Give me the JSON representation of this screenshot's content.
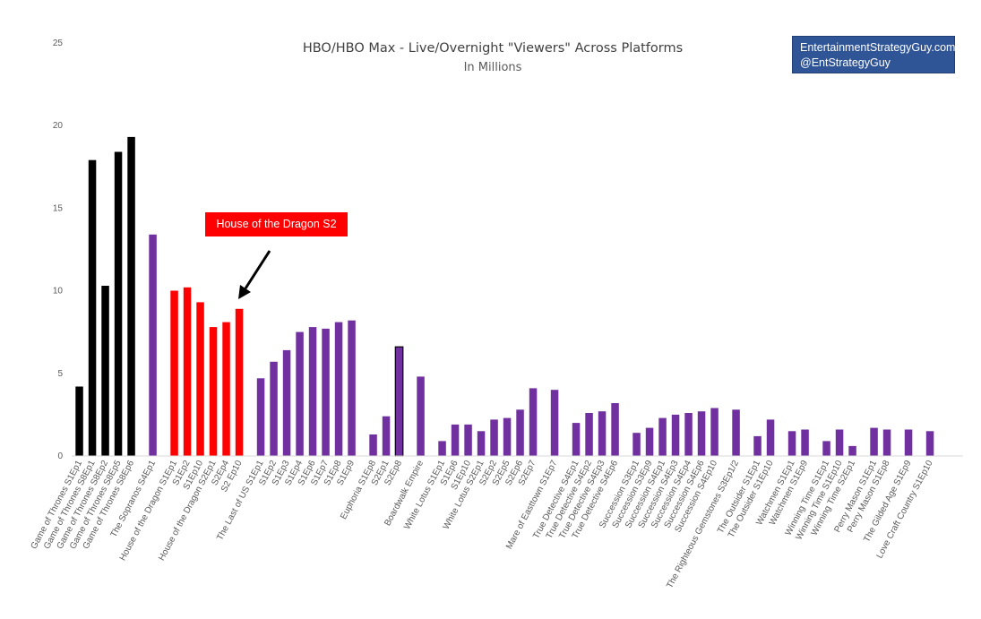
{
  "chart_data": {
    "type": "bar",
    "title": "HBO/HBO Max - Live/Overnight \"Viewers\" Across Platforms",
    "subtitle": "In Millions",
    "ylim": [
      0,
      25
    ],
    "yticks": [
      0,
      5,
      10,
      15,
      20,
      25
    ],
    "grid": false,
    "categories": [
      "Game of Thrones S1Ep1",
      "Game of Thrones S8Ep1",
      "Game of Thrones S8Ep2",
      "Game of Thrones S8Ep5",
      "Game of Thrones S8Ep6",
      "The Sopranos S4Ep1",
      "House of the Dragon S1Ep1",
      "S1Ep2",
      "S1Ep10",
      "House of the Dragon S2Ep1",
      "S2Ep4",
      "S2 Ep10",
      "The Last of US S1Ep1",
      "S1Ep2",
      "S1Ep3",
      "S1Ep4",
      "S1Ep6",
      "S1Ep7",
      "S1Ep8",
      "S1Ep9",
      "Euphoria S1Ep8",
      "S2Ep1",
      "S2Ep8",
      "Boardwalk Empire",
      "White Lotus S1Ep1",
      "S1Ep6",
      "S1Ep10",
      "White Lotus S2Ep1",
      "S2Ep2",
      "S2Ep5",
      "S2Ep6",
      "S2Ep7",
      "Mare of Easttown S1Ep7",
      "True Detective S4Ep1",
      "True Detective S4Ep2",
      "True Detective S4Ep3",
      "True Detective S4Ep6",
      "Succession S3Ep1",
      "Succession S3Ep9",
      "Succession S4Ep1",
      "Succession S4Ep3",
      "Succession S4Ep4",
      "Succession S4Ep6",
      "Succession S4Ep10",
      "The Righteous Gemstones S3Ep1/2",
      "The Outsider S1Ep1",
      "The Outsider S1Ep10",
      "Watchmen S1Ep1",
      "Watchmen S1Ep9",
      "Winning Time S1Ep1",
      "Winning Time S1Ep10",
      "Winning Time S2Ep1",
      "Perry Mason S1Ep1",
      "Perry Mason S1Ep8",
      "The Gilded Age S1Ep9",
      "Love Craft Country S1Ep10"
    ],
    "values": [
      4.2,
      17.9,
      10.3,
      18.4,
      19.3,
      13.4,
      10.0,
      10.2,
      9.3,
      7.8,
      8.1,
      8.9,
      4.7,
      5.7,
      6.4,
      7.5,
      7.8,
      7.7,
      8.1,
      8.2,
      1.3,
      2.4,
      6.6,
      4.8,
      0.9,
      1.9,
      1.9,
      1.5,
      2.2,
      2.3,
      2.8,
      4.1,
      4.0,
      2.0,
      2.6,
      2.7,
      3.2,
      1.4,
      1.7,
      2.3,
      2.5,
      2.6,
      2.7,
      2.9,
      2.8,
      1.2,
      2.2,
      1.5,
      1.6,
      0.9,
      1.6,
      0.6,
      1.7,
      1.6,
      1.6,
      1.5
    ],
    "colors": [
      "#000000",
      "#000000",
      "#000000",
      "#000000",
      "#000000",
      "#7030a0",
      "#ff0000",
      "#ff0000",
      "#ff0000",
      "#ff0000",
      "#ff0000",
      "#ff0000",
      "#7030a0",
      "#7030a0",
      "#7030a0",
      "#7030a0",
      "#7030a0",
      "#7030a0",
      "#7030a0",
      "#7030a0",
      "#7030a0",
      "#7030a0",
      "#7030a0",
      "#7030a0",
      "#7030a0",
      "#7030a0",
      "#7030a0",
      "#7030a0",
      "#7030a0",
      "#7030a0",
      "#7030a0",
      "#7030a0",
      "#7030a0",
      "#7030a0",
      "#7030a0",
      "#7030a0",
      "#7030a0",
      "#7030a0",
      "#7030a0",
      "#7030a0",
      "#7030a0",
      "#7030a0",
      "#7030a0",
      "#7030a0",
      "#7030a0",
      "#7030a0",
      "#7030a0",
      "#7030a0",
      "#7030a0",
      "#7030a0",
      "#7030a0",
      "#7030a0",
      "#7030a0",
      "#7030a0",
      "#7030a0",
      "#7030a0"
    ],
    "groups": [
      5,
      1,
      6,
      8,
      3,
      1,
      8,
      1,
      4,
      7,
      1,
      2,
      2,
      3,
      2,
      1,
      1
    ],
    "outlined_bar": "S2Ep8",
    "annotation": {
      "text": "House of the Dragon S2",
      "color": "#ff0000",
      "target": "S2 Ep10"
    }
  },
  "credit": {
    "line1": "EntertainmentStrategyGuy.com",
    "line2": "@EntStrategyGuy",
    "color": "#2f5597"
  }
}
